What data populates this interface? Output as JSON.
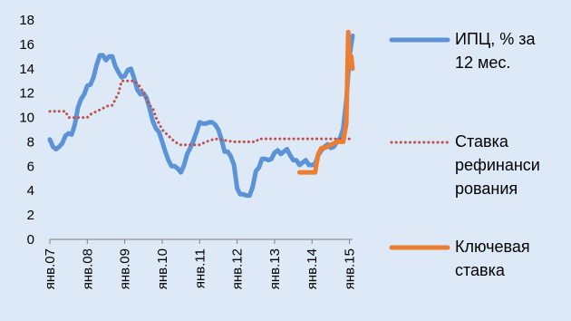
{
  "chart_data": {
    "type": "line",
    "title": "",
    "xlabel": "",
    "ylabel": "",
    "ylim": [
      0,
      18
    ],
    "y_ticks": [
      0,
      2,
      4,
      6,
      8,
      10,
      12,
      14,
      16,
      18
    ],
    "x_ticks": [
      "янв.07",
      "янв.08",
      "янв.09",
      "янв.10",
      "янв.11",
      "янв.12",
      "янв.13",
      "янв.14",
      "янв.15"
    ],
    "x_range_months": [
      0,
      97
    ],
    "grid": false,
    "legend_position": "right",
    "series": [
      {
        "name_lines": [
          "ИПЦ, % за",
          "12 мес."
        ],
        "color": "#5b93d6",
        "style": "solid",
        "points": [
          [
            0,
            8.2
          ],
          [
            1,
            7.6
          ],
          [
            2,
            7.4
          ],
          [
            3,
            7.6
          ],
          [
            4,
            7.9
          ],
          [
            5,
            8.5
          ],
          [
            6,
            8.7
          ],
          [
            7,
            8.6
          ],
          [
            8,
            9.4
          ],
          [
            9,
            10.8
          ],
          [
            10,
            11.5
          ],
          [
            11,
            11.9
          ],
          [
            12,
            12.6
          ],
          [
            13,
            12.7
          ],
          [
            14,
            13.3
          ],
          [
            15,
            14.3
          ],
          [
            16,
            15.1
          ],
          [
            17,
            15.1
          ],
          [
            18,
            14.7
          ],
          [
            19,
            15.0
          ],
          [
            20,
            15.0
          ],
          [
            21,
            14.2
          ],
          [
            22,
            13.7
          ],
          [
            23,
            13.3
          ],
          [
            24,
            13.4
          ],
          [
            25,
            13.9
          ],
          [
            26,
            14.0
          ],
          [
            27,
            13.2
          ],
          [
            28,
            12.3
          ],
          [
            29,
            11.9
          ],
          [
            30,
            12.0
          ],
          [
            31,
            11.6
          ],
          [
            32,
            10.7
          ],
          [
            33,
            9.7
          ],
          [
            34,
            9.1
          ],
          [
            35,
            8.8
          ],
          [
            36,
            8.0
          ],
          [
            37,
            7.2
          ],
          [
            38,
            6.5
          ],
          [
            39,
            6.0
          ],
          [
            40,
            6.0
          ],
          [
            41,
            5.8
          ],
          [
            42,
            5.5
          ],
          [
            43,
            6.1
          ],
          [
            44,
            7.0
          ],
          [
            45,
            7.5
          ],
          [
            46,
            8.1
          ],
          [
            47,
            8.8
          ],
          [
            48,
            9.6
          ],
          [
            49,
            9.5
          ],
          [
            50,
            9.5
          ],
          [
            51,
            9.6
          ],
          [
            52,
            9.6
          ],
          [
            53,
            9.4
          ],
          [
            54,
            9.0
          ],
          [
            55,
            8.2
          ],
          [
            56,
            7.2
          ],
          [
            57,
            7.2
          ],
          [
            58,
            6.8
          ],
          [
            59,
            6.1
          ],
          [
            60,
            4.2
          ],
          [
            61,
            3.7
          ],
          [
            62,
            3.7
          ],
          [
            63,
            3.6
          ],
          [
            64,
            3.6
          ],
          [
            65,
            4.3
          ],
          [
            66,
            5.6
          ],
          [
            67,
            5.9
          ],
          [
            68,
            6.6
          ],
          [
            69,
            6.6
          ],
          [
            70,
            6.5
          ],
          [
            71,
            6.6
          ],
          [
            72,
            7.1
          ],
          [
            73,
            7.3
          ],
          [
            74,
            7.0
          ],
          [
            75,
            7.2
          ],
          [
            76,
            7.4
          ],
          [
            77,
            6.9
          ],
          [
            78,
            6.5
          ],
          [
            79,
            6.5
          ],
          [
            80,
            6.1
          ],
          [
            81,
            6.3
          ],
          [
            82,
            6.5
          ],
          [
            83,
            6.1
          ],
          [
            84,
            6.1
          ],
          [
            85,
            6.2
          ],
          [
            86,
            6.9
          ],
          [
            87,
            7.3
          ],
          [
            88,
            7.6
          ],
          [
            89,
            7.8
          ],
          [
            90,
            7.5
          ],
          [
            91,
            7.6
          ],
          [
            92,
            8.0
          ],
          [
            93,
            8.3
          ],
          [
            94,
            9.1
          ],
          [
            95,
            11.4
          ],
          [
            96,
            15.0
          ],
          [
            97,
            16.7
          ]
        ]
      },
      {
        "name_lines": [
          "Ставка",
          "рефинанси",
          "рования"
        ],
        "color": "#c0504d",
        "style": "dotted",
        "points": [
          [
            0,
            10.5
          ],
          [
            5,
            10.5
          ],
          [
            6,
            10.0
          ],
          [
            12,
            10.0
          ],
          [
            13,
            10.25
          ],
          [
            15,
            10.5
          ],
          [
            17,
            10.75
          ],
          [
            19,
            11.0
          ],
          [
            20,
            11.0
          ],
          [
            22,
            12.0
          ],
          [
            23,
            13.0
          ],
          [
            27,
            13.0
          ],
          [
            29,
            12.5
          ],
          [
            30,
            12.0
          ],
          [
            31,
            11.5
          ],
          [
            32,
            11.0
          ],
          [
            33,
            10.75
          ],
          [
            34,
            10.0
          ],
          [
            35,
            9.5
          ],
          [
            36,
            9.0
          ],
          [
            37,
            8.75
          ],
          [
            38,
            8.5
          ],
          [
            39,
            8.25
          ],
          [
            40,
            8.0
          ],
          [
            42,
            7.75
          ],
          [
            48,
            7.75
          ],
          [
            50,
            8.0
          ],
          [
            53,
            8.25
          ],
          [
            59,
            8.0
          ],
          [
            66,
            8.0
          ],
          [
            67,
            8.25
          ],
          [
            97,
            8.25
          ]
        ]
      },
      {
        "name_lines": [
          "Ключевая",
          "ставка"
        ],
        "color": "#ed7d31",
        "style": "solid",
        "points": [
          [
            80,
            5.5
          ],
          [
            84,
            5.5
          ],
          [
            85,
            5.5
          ],
          [
            86,
            7.0
          ],
          [
            87,
            7.5
          ],
          [
            88,
            7.5
          ],
          [
            92,
            8.0
          ],
          [
            94,
            8.0
          ],
          [
            95,
            9.5
          ],
          [
            95.6,
            17.0
          ],
          [
            96,
            15.0
          ],
          [
            96.6,
            15.0
          ],
          [
            97,
            14.0
          ]
        ]
      }
    ]
  }
}
